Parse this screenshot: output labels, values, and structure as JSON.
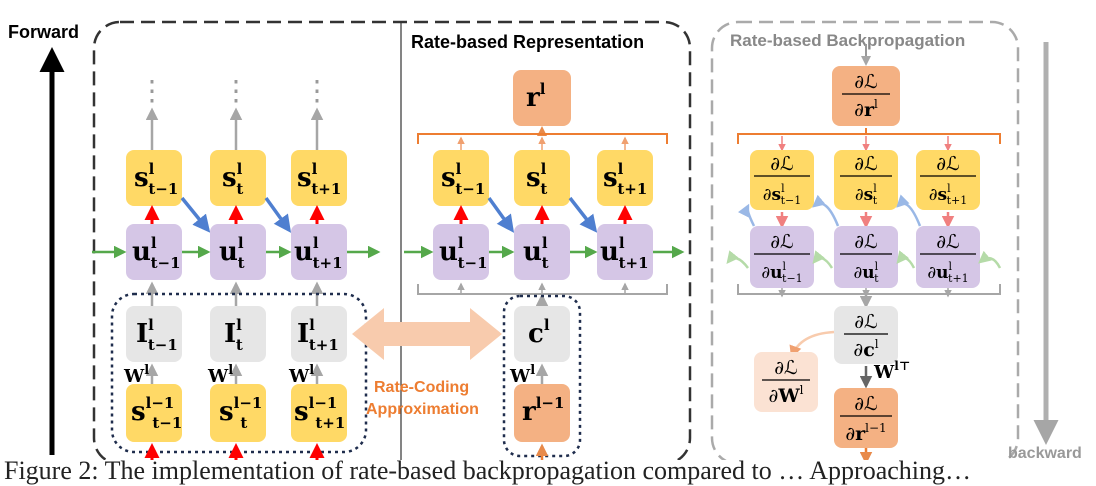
{
  "labels": {
    "forward": "Forward",
    "backward": "backward",
    "rate_rep": "Rate-based Representation",
    "rate_bp": "Rate-based Backpropagation",
    "rate_coding_1": "Rate-Coding",
    "rate_coding_2": "Approximation"
  },
  "symbols": {
    "dots": "⋮",
    "weight": "W",
    "weight_sup": "l",
    "weight_T_sup": "l⊤",
    "loss_num": "∂ℒ"
  },
  "left_panel": {
    "spikes": [
      {
        "base": "s",
        "sup": "l",
        "sub": "t−1"
      },
      {
        "base": "s",
        "sup": "l",
        "sub": "t"
      },
      {
        "base": "s",
        "sup": "l",
        "sub": "t+1"
      }
    ],
    "potentials": [
      {
        "base": "u",
        "sup": "l",
        "sub": "t−1"
      },
      {
        "base": "u",
        "sup": "l",
        "sub": "t"
      },
      {
        "base": "u",
        "sup": "l",
        "sub": "t+1"
      }
    ],
    "currents": [
      {
        "base": "I",
        "sup": "l",
        "sub": "t−1"
      },
      {
        "base": "I",
        "sup": "l",
        "sub": "t"
      },
      {
        "base": "I",
        "sup": "l",
        "sub": "t+1"
      }
    ],
    "inputs": [
      {
        "base": "s",
        "sup": "l−1",
        "sub": "t−1"
      },
      {
        "base": "s",
        "sup": "l−1",
        "sub": "t"
      },
      {
        "base": "s",
        "sup": "l−1",
        "sub": "t+1"
      }
    ]
  },
  "middle_panel": {
    "rate": {
      "base": "r",
      "sup": "l"
    },
    "spikes": [
      {
        "base": "s",
        "sup": "l",
        "sub": "t−1"
      },
      {
        "base": "s",
        "sup": "l",
        "sub": "t"
      },
      {
        "base": "s",
        "sup": "l",
        "sub": "t+1"
      }
    ],
    "potentials": [
      {
        "base": "u",
        "sup": "l",
        "sub": "t−1"
      },
      {
        "base": "u",
        "sup": "l",
        "sub": "t"
      },
      {
        "base": "u",
        "sup": "l",
        "sub": "t+1"
      }
    ],
    "current": {
      "base": "c",
      "sup": "l"
    },
    "input_rate": {
      "base": "r",
      "sup": "l−1"
    }
  },
  "right_panel": {
    "top": {
      "base": "r",
      "sup": "l"
    },
    "spikes": [
      {
        "base": "s",
        "sup": "l",
        "sub": "t−1"
      },
      {
        "base": "s",
        "sup": "l",
        "sub": "t"
      },
      {
        "base": "s",
        "sup": "l",
        "sub": "t+1"
      }
    ],
    "potentials": [
      {
        "base": "u",
        "sup": "l",
        "sub": "t−1"
      },
      {
        "base": "u",
        "sup": "l",
        "sub": "t"
      },
      {
        "base": "u",
        "sup": "l",
        "sub": "t+1"
      }
    ],
    "current": {
      "base": "c",
      "sup": "l"
    },
    "weight": {
      "base": "W",
      "sup": "l"
    },
    "bottom": {
      "base": "r",
      "sup": "l−1"
    }
  },
  "caption": "Figure 2: The implementation of rate-based backpropagation compared to … Approaching… "
}
